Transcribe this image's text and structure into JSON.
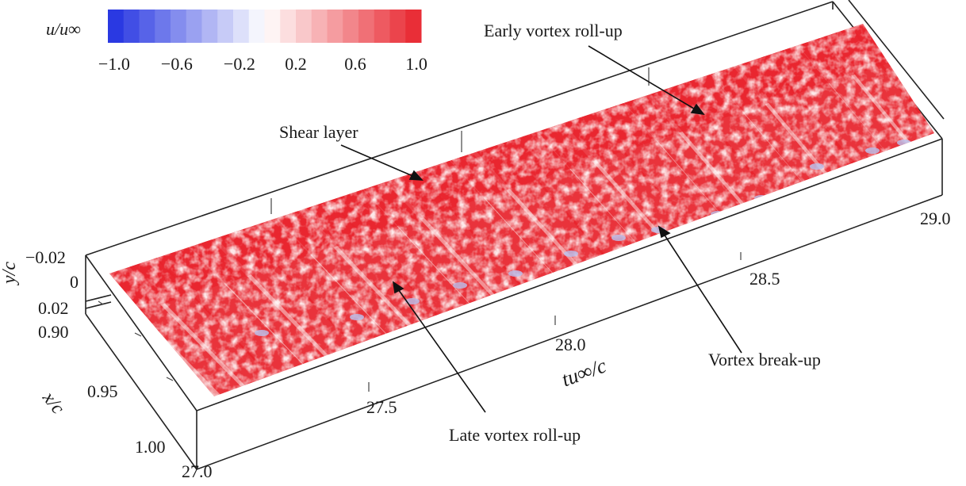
{
  "colorbar": {
    "label": "u/u∞",
    "ticks": [
      "−1.0",
      "−0.6",
      "−0.2",
      "0.2",
      "0.6",
      "1.0"
    ],
    "min_color": "#1f2fe0",
    "mid_color": "#ffffff",
    "max_color": "#e8232c"
  },
  "axes": {
    "y": {
      "label": "y/c",
      "ticks": [
        "−0.02",
        "0",
        "0.02"
      ]
    },
    "x": {
      "label": "x/c",
      "ticks": [
        "0.90",
        "0.95",
        "1.00"
      ]
    },
    "t": {
      "label": "tu∞/c",
      "ticks": [
        "27.0",
        "27.5",
        "28.0",
        "28.5",
        "29.0"
      ]
    }
  },
  "annotations": {
    "shear_layer": "Shear layer",
    "early_rollup": "Early vortex roll-up",
    "late_rollup": "Late vortex roll-up",
    "breakup": "Vortex break-up"
  },
  "colors": {
    "surface_red": "#e8232c",
    "surface_light": "#f6b3b5",
    "breakup_blue": "#b9c3f0",
    "box_line": "#222222"
  }
}
